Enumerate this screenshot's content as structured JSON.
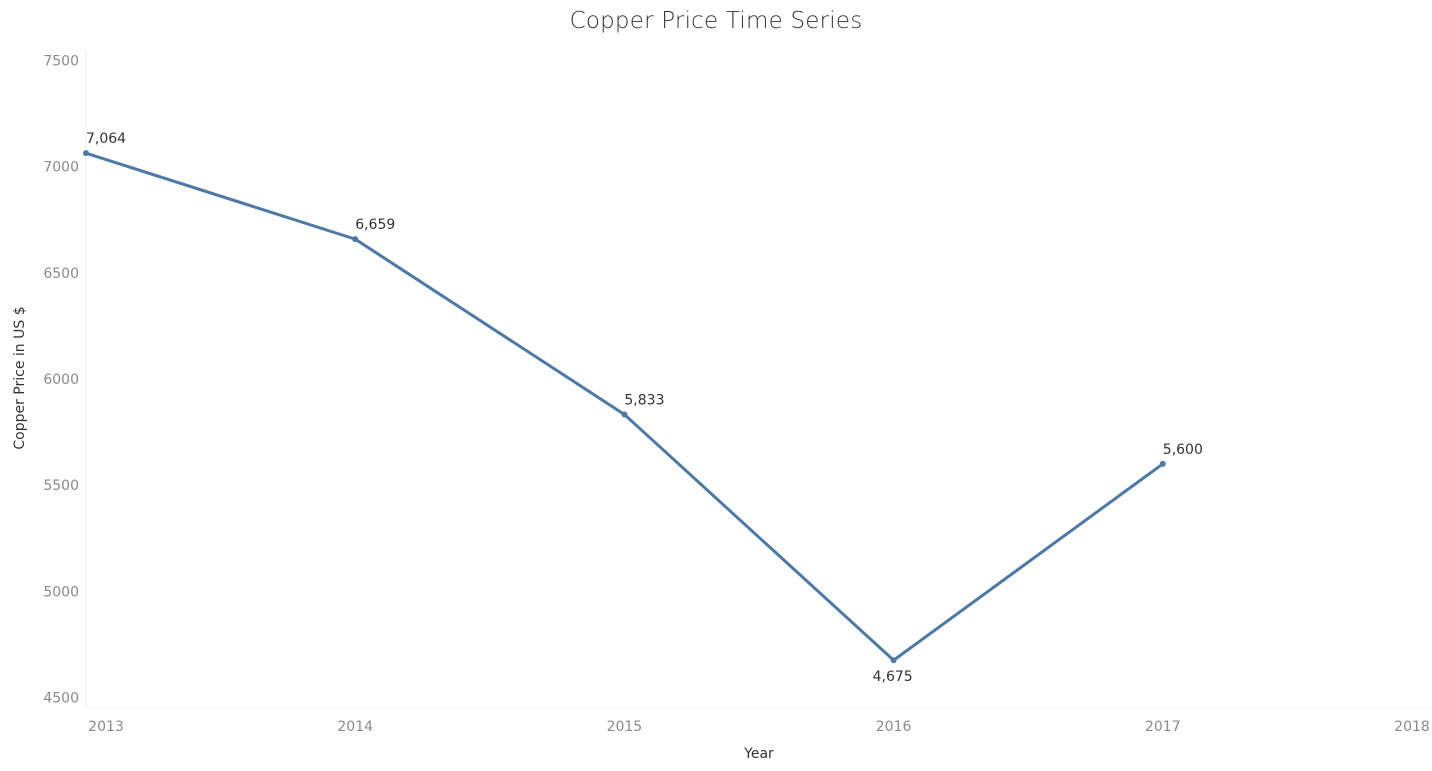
{
  "chart_data": {
    "type": "line",
    "title": "Copper Price Time Series",
    "xlabel": "Year",
    "ylabel": "Copper Price in US $",
    "x": [
      2013,
      2014,
      2015,
      2016,
      2017
    ],
    "x_ticks": [
      "2013",
      "2014",
      "2015",
      "2016",
      "2017",
      "2018"
    ],
    "xlim": [
      2013,
      2018
    ],
    "y_ticks": [
      "7500",
      "7000",
      "6500",
      "6000",
      "5500",
      "5000",
      "4500"
    ],
    "ylim": [
      4450,
      7550
    ],
    "series": [
      {
        "values": [
          7064,
          6659,
          5833,
          4675,
          5600
        ],
        "labels": [
          "7,064",
          "6,659",
          "5,833",
          "4,675",
          "5,600"
        ],
        "color": "#4e79a7"
      }
    ],
    "grid": false
  }
}
